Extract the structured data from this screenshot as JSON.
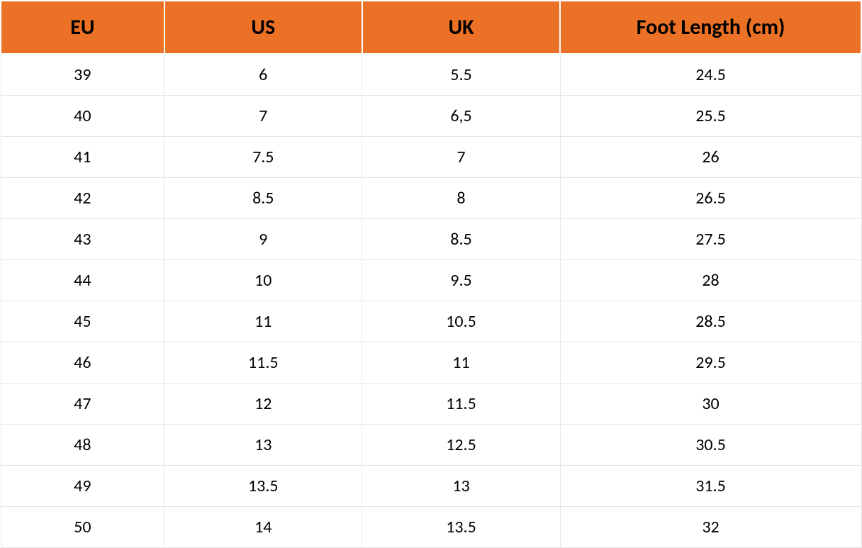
{
  "table": {
    "type": "table",
    "header_bg_color": "#ea7125",
    "header_text_color": "#000000",
    "header_fontsize": 30,
    "header_fontweight": "bold",
    "body_bg_color": "#ffffff",
    "body_text_color": "#000000",
    "body_fontsize": 24,
    "border_color": "#e5e5e5",
    "header_border_color": "#ffffff",
    "column_widths_pct": [
      19,
      23,
      23,
      35
    ],
    "columns": [
      "EU",
      "US",
      "UK",
      "Foot Length (cm)"
    ],
    "rows": [
      [
        "39",
        "6",
        "5.5",
        "24.5"
      ],
      [
        "40",
        "7",
        "6,5",
        "25.5"
      ],
      [
        "41",
        "7.5",
        "7",
        "26"
      ],
      [
        "42",
        "8.5",
        "8",
        "26.5"
      ],
      [
        "43",
        "9",
        "8.5",
        "27.5"
      ],
      [
        "44",
        "10",
        "9.5",
        "28"
      ],
      [
        "45",
        "11",
        "10.5",
        "28.5"
      ],
      [
        "46",
        "11.5",
        "11",
        "29.5"
      ],
      [
        "47",
        "12",
        "11.5",
        "30"
      ],
      [
        "48",
        "13",
        "12.5",
        "30.5"
      ],
      [
        "49",
        "13.5",
        "13",
        "31.5"
      ],
      [
        "50",
        "14",
        "13.5",
        "32"
      ]
    ]
  }
}
